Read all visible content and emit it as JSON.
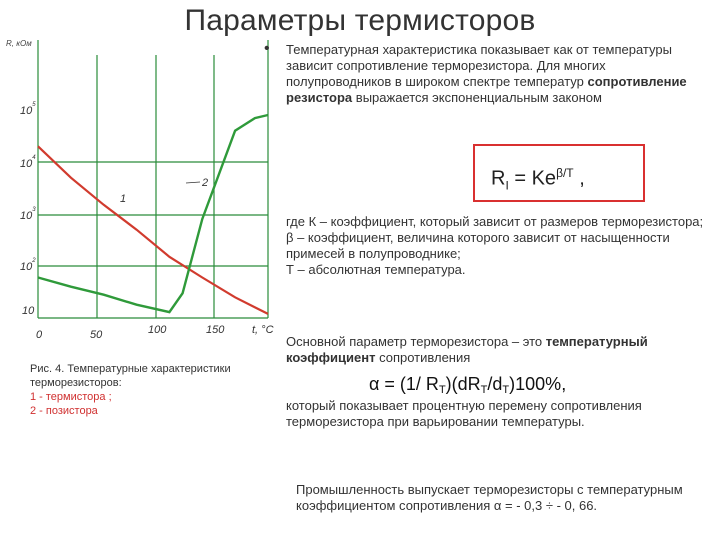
{
  "title": "Параметры термисторов",
  "figure": {
    "y_label": "R, кОм",
    "y_ticks": [
      "10^5",
      "10^4",
      "10^3",
      "10^2",
      "10"
    ],
    "x_ticks": [
      "0",
      "50",
      "100",
      "150"
    ],
    "x_unit": "t, °C",
    "curve_label_1": "1",
    "curve_label_2": "2",
    "caption_title": "Рис. 4. Температурные характеристики терморезисторов:",
    "caption_item_1": "1 - термистора ;",
    "caption_item_2": "2 - позистора",
    "colors": {
      "curve_1": "#d13b2e",
      "curve_2": "#2f9a3a",
      "grid": "#2a8c3a"
    }
  },
  "chart_data": {
    "type": "line",
    "xlabel": "t, °C",
    "ylabel": "R, кОм",
    "xlim": [
      0,
      175
    ],
    "y_scale": "log",
    "ylim": [
      10,
      100000
    ],
    "series": [
      {
        "name": "1",
        "x": [
          0,
          25,
          50,
          75,
          100,
          125,
          150,
          175
        ],
        "y": [
          20000,
          5000,
          1500,
          500,
          150,
          60,
          25,
          12
        ]
      },
      {
        "name": "2",
        "x": [
          0,
          25,
          50,
          75,
          100,
          110,
          125,
          150,
          165,
          175
        ],
        "y": [
          60,
          40,
          28,
          18,
          13,
          30,
          800,
          40000,
          70000,
          80000
        ]
      }
    ]
  },
  "bullet": "•",
  "para1": {
    "text_a": "Температурная характеристика показывает как от температуры зависит сопротивление терморезистора. Для многих полупроводников в широком спектре температур ",
    "bold": "сопротивление резистора",
    "text_b": " выражается экспоненциальным законом"
  },
  "formula_rt": {
    "base": "R",
    "sub": "I",
    "rest": " = Ke",
    "sup": "β/T",
    "end": " ,"
  },
  "para2": [
    "где К – коэффициент, который зависит от размеров терморезистора;",
    "β – коэффициент, величина которого зависит от насыщенности примесей в полупроводнике;",
    "Т – абсолютная температура."
  ],
  "para3": {
    "text_a": "Основной параметр терморезистора – это ",
    "bold": "температурный коэффициент",
    "text_b": " сопротивления"
  },
  "formula_alpha": {
    "a": "α = (1/ R",
    "s1": "T",
    "b": ")(dR",
    "s2": "T",
    "c": "/d",
    "s3": "T",
    "d": ")100%,"
  },
  "para4": "который показывает процентную перемену сопротивления терморезистора при варьировании температуры.",
  "para5": "Промышленность выпускает терморезисторы с температурным коэффициентом сопротивления α = - 0,3 ÷ - 0, 66."
}
